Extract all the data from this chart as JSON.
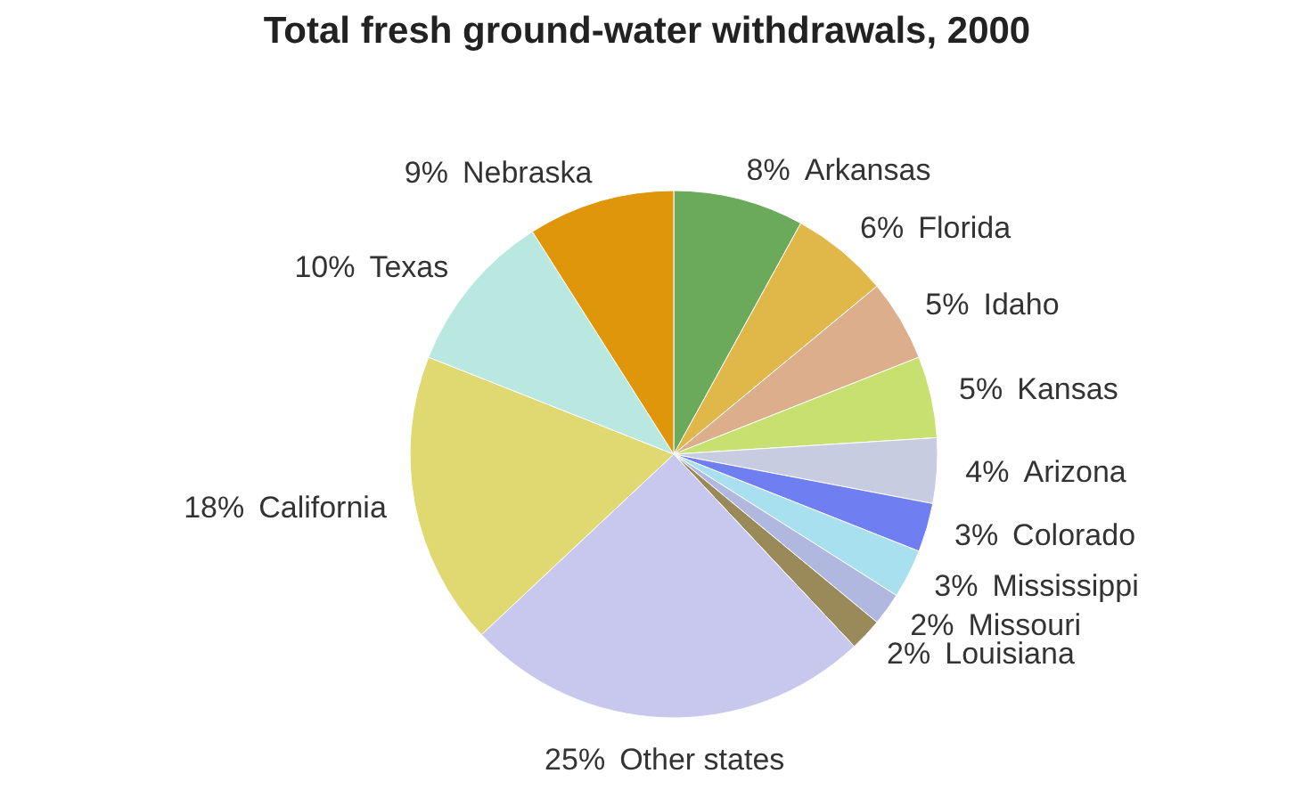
{
  "chart_data": {
    "type": "pie",
    "title": "Total fresh ground-water withdrawals, 2000",
    "categories": [
      "Arkansas",
      "Florida",
      "Idaho",
      "Kansas",
      "Arizona",
      "Colorado",
      "Mississippi",
      "Missouri",
      "Louisiana",
      "Other states",
      "California",
      "Texas",
      "Nebraska"
    ],
    "values": [
      8,
      6,
      5,
      5,
      4,
      3,
      3,
      2,
      2,
      25,
      18,
      10,
      9
    ],
    "colors": [
      "#6aaa5a",
      "#e0b84a",
      "#dcae8c",
      "#c8e070",
      "#c8cce0",
      "#6f7ef0",
      "#a8e0f0",
      "#b0b8e0",
      "#9a8a5a",
      "#c8c8ee",
      "#e0d870",
      "#b8e8e0",
      "#e0960a"
    ],
    "value_labels": [
      "8%",
      "6%",
      "5%",
      "5%",
      "4%",
      "3%",
      "3%",
      "2%",
      "2%",
      "25%",
      "18%",
      "10%",
      "9%"
    ]
  }
}
